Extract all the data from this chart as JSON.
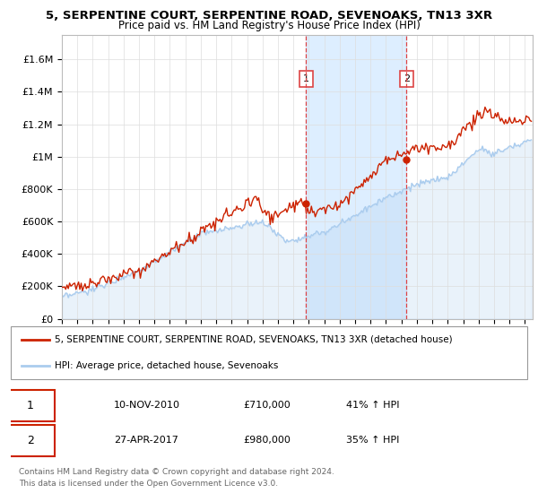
{
  "title": "5, SERPENTINE COURT, SERPENTINE ROAD, SEVENOAKS, TN13 3XR",
  "subtitle": "Price paid vs. HM Land Registry's House Price Index (HPI)",
  "ylabel_ticks": [
    "£0",
    "£200K",
    "£400K",
    "£600K",
    "£800K",
    "£1M",
    "£1.2M",
    "£1.4M",
    "£1.6M"
  ],
  "ytick_values": [
    0,
    200000,
    400000,
    600000,
    800000,
    1000000,
    1200000,
    1400000,
    1600000
  ],
  "ylim": [
    0,
    1750000
  ],
  "xlim_start": 1995.0,
  "xlim_end": 2025.5,
  "xticks": [
    1995,
    1996,
    1997,
    1998,
    1999,
    2000,
    2001,
    2002,
    2003,
    2004,
    2005,
    2006,
    2007,
    2008,
    2009,
    2010,
    2011,
    2012,
    2013,
    2014,
    2015,
    2016,
    2017,
    2018,
    2019,
    2020,
    2021,
    2022,
    2023,
    2024,
    2025
  ],
  "hpi_color": "#aaccee",
  "price_color": "#cc2200",
  "vline_color": "#dd4444",
  "vline1_x": 2010.83,
  "vline2_x": 2017.33,
  "marker1_x": 2010.83,
  "marker1_y": 710000,
  "marker2_x": 2017.33,
  "marker2_y": 980000,
  "label1_num": "1",
  "label2_num": "2",
  "legend_line1": "5, SERPENTINE COURT, SERPENTINE ROAD, SEVENOAKS, TN13 3XR (detached house)",
  "legend_line2": "HPI: Average price, detached house, Sevenoaks",
  "table_row1_num": "1",
  "table_row1_date": "10-NOV-2010",
  "table_row1_price": "£710,000",
  "table_row1_hpi": "41% ↑ HPI",
  "table_row2_num": "2",
  "table_row2_date": "27-APR-2017",
  "table_row2_price": "£980,000",
  "table_row2_hpi": "35% ↑ HPI",
  "footnote1": "Contains HM Land Registry data © Crown copyright and database right 2024.",
  "footnote2": "This data is licensed under the Open Government Licence v3.0.",
  "shaded_region_color": "#ddeeff",
  "background_color": "#ffffff"
}
